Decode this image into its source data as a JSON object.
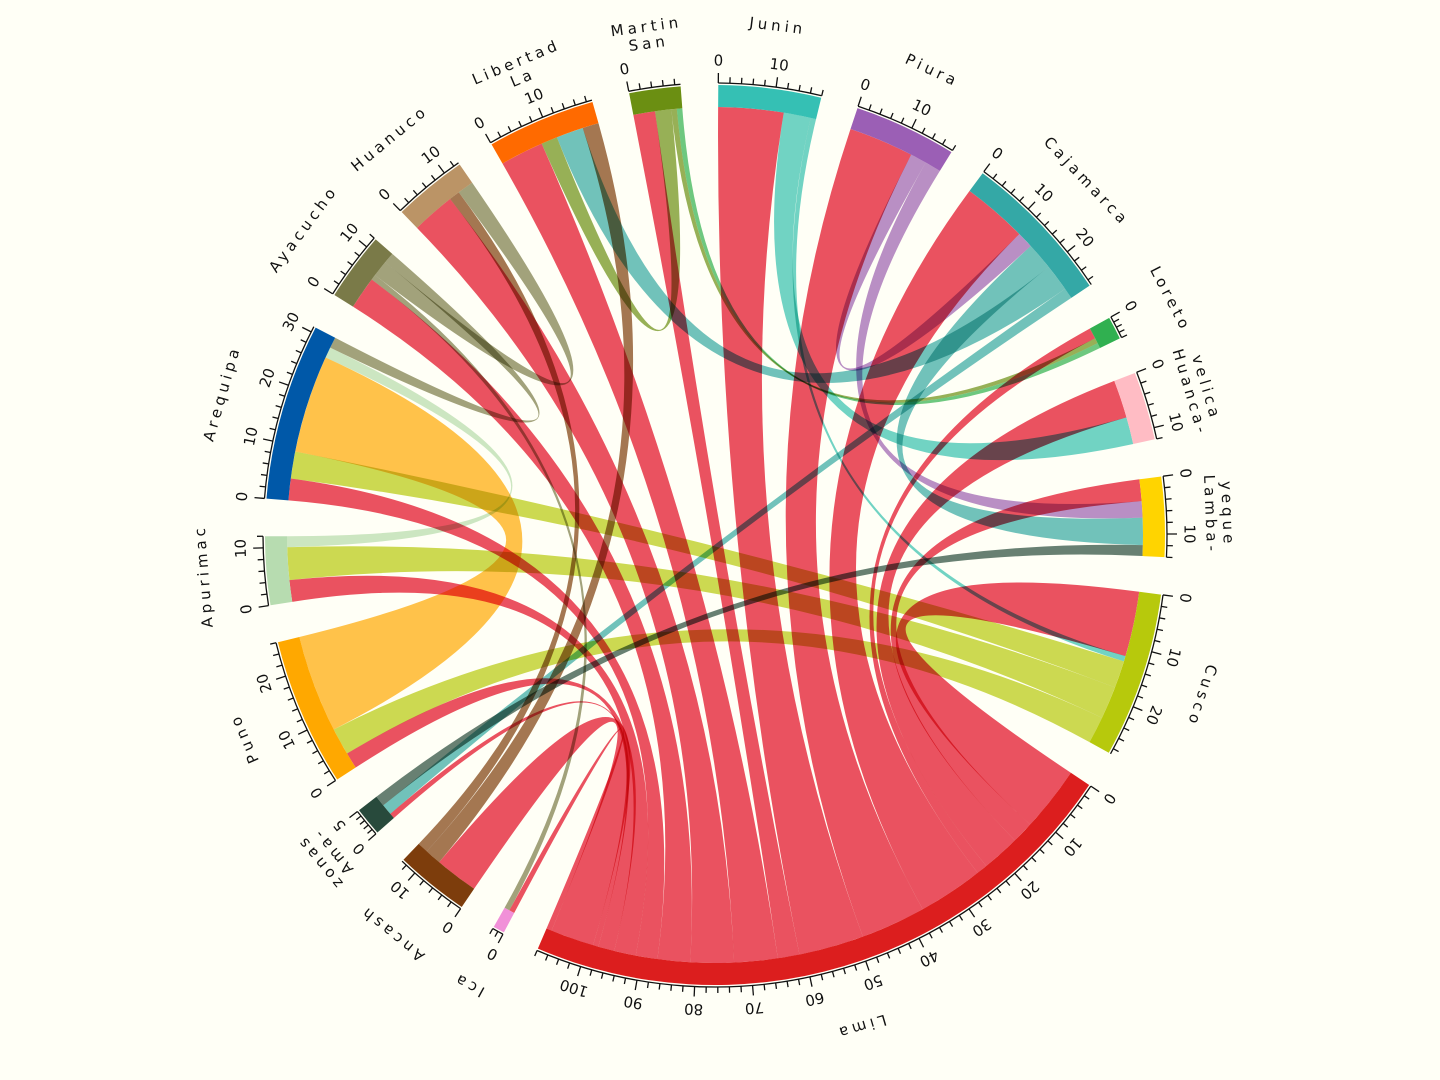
{
  "chart_data": {
    "type": "chord",
    "title": "",
    "sectors": [
      {
        "name": "San Martin",
        "label": [
          "San",
          "Martin"
        ],
        "color": "#6b8f12"
      },
      {
        "name": "Junin",
        "label": [
          "Junin"
        ],
        "color": "#35c0b4"
      },
      {
        "name": "Piura",
        "label": [
          "Piura"
        ],
        "color": "#9b5fb5"
      },
      {
        "name": "Cajamarca",
        "label": [
          "Cajamarca"
        ],
        "color": "#34a8a6"
      },
      {
        "name": "Loreto",
        "label": [
          "Loreto"
        ],
        "color": "#30b050"
      },
      {
        "name": "Huancavelica",
        "label": [
          "Huanca-",
          "velica"
        ],
        "color": "#ffbcc4"
      },
      {
        "name": "Lambayeque",
        "label": [
          "Lamba-",
          "yeque"
        ],
        "color": "#ffd400"
      },
      {
        "name": "Cusco",
        "label": [
          "Cusco"
        ],
        "color": "#b7c90c"
      },
      {
        "name": "Lima",
        "label": [
          "Lima"
        ],
        "color": "#dc1e1e"
      },
      {
        "name": "Ica",
        "label": [
          "Ica"
        ],
        "color": "#f190d8"
      },
      {
        "name": "Ancash",
        "label": [
          "Ancash"
        ],
        "color": "#7d3d0c"
      },
      {
        "name": "Amazonas",
        "label": [
          "Ama-",
          "zonas"
        ],
        "color": "#284a3c"
      },
      {
        "name": "Puno",
        "label": [
          "Puno"
        ],
        "color": "#ffa800"
      },
      {
        "name": "Apurimac",
        "label": [
          "Apurimac"
        ],
        "color": "#b7dcb0"
      },
      {
        "name": "Arequipa",
        "label": [
          "Arequipa"
        ],
        "color": "#0058a8"
      },
      {
        "name": "Ayacucho",
        "label": [
          "Ayacucho"
        ],
        "color": "#7a7a48"
      },
      {
        "name": "Huanuco",
        "label": [
          "Huanuco"
        ],
        "color": "#bb9466"
      },
      {
        "name": "La Libertad",
        "label": [
          "La",
          "Libertad"
        ],
        "color": "#ff6a00"
      }
    ],
    "links": [
      {
        "from": "Lima",
        "to": "Cusco",
        "value": 12
      },
      {
        "from": "Lima",
        "to": "Lambayeque",
        "value": 4
      },
      {
        "from": "Lima",
        "to": "Huancavelica",
        "value": 7
      },
      {
        "from": "Lima",
        "to": "Loreto",
        "value": 2
      },
      {
        "from": "Lima",
        "to": "Cajamarca",
        "value": 12
      },
      {
        "from": "Lima",
        "to": "Piura",
        "value": 12
      },
      {
        "from": "Lima",
        "to": "Junin",
        "value": 12
      },
      {
        "from": "Lima",
        "to": "San Martin",
        "value": 4
      },
      {
        "from": "Lima",
        "to": "La Libertad",
        "value": 8
      },
      {
        "from": "Lima",
        "to": "Huanuco",
        "value": 8
      },
      {
        "from": "Lima",
        "to": "Ayacucho",
        "value": 6
      },
      {
        "from": "Lima",
        "to": "Arequipa",
        "value": 4
      },
      {
        "from": "Lima",
        "to": "Apurimac",
        "value": 4
      },
      {
        "from": "Lima",
        "to": "Puno",
        "value": 3
      },
      {
        "from": "Lima",
        "to": "Amazonas",
        "value": 1
      },
      {
        "from": "Lima",
        "to": "Ancash",
        "value": 8
      },
      {
        "from": "Lima",
        "to": "Ica",
        "value": 1
      },
      {
        "from": "San Martin",
        "to": "La Libertad",
        "value": 3
      },
      {
        "from": "San Martin",
        "to": "Loreto",
        "value": 1
      },
      {
        "from": "Junin",
        "to": "Huancavelica",
        "value": 5
      },
      {
        "from": "Junin",
        "to": "Cusco",
        "value": 1
      },
      {
        "from": "Piura",
        "to": "Cajamarca",
        "value": 3
      },
      {
        "from": "Piura",
        "to": "Lambayeque",
        "value": 3
      },
      {
        "from": "Cajamarca",
        "to": "Lambayeque",
        "value": 5
      },
      {
        "from": "Cajamarca",
        "to": "La Libertad",
        "value": 5
      },
      {
        "from": "Cajamarca",
        "to": "Amazonas",
        "value": 2
      },
      {
        "from": "Loreto",
        "to": "San Martin",
        "value": 1
      },
      {
        "from": "Cusco",
        "to": "Arequipa",
        "value": 5
      },
      {
        "from": "Cusco",
        "to": "Apurimac",
        "value": 6
      },
      {
        "from": "Cusco",
        "to": "Puno",
        "value": 5
      },
      {
        "from": "Ancash",
        "to": "La Libertad",
        "value": 3
      },
      {
        "from": "Ancash",
        "to": "Huanuco",
        "value": 2
      },
      {
        "from": "Amazonas",
        "to": "Lambayeque",
        "value": 2
      },
      {
        "from": "Puno",
        "to": "Arequipa",
        "value": 18
      },
      {
        "from": "Apurimac",
        "to": "Arequipa",
        "value": 2
      },
      {
        "from": "Ayacucho",
        "to": "Ica",
        "value": 1
      },
      {
        "from": "Ayacucho",
        "to": "Huanuco",
        "value": 3
      },
      {
        "from": "Ayacucho",
        "to": "Arequipa",
        "value": 2
      }
    ]
  }
}
